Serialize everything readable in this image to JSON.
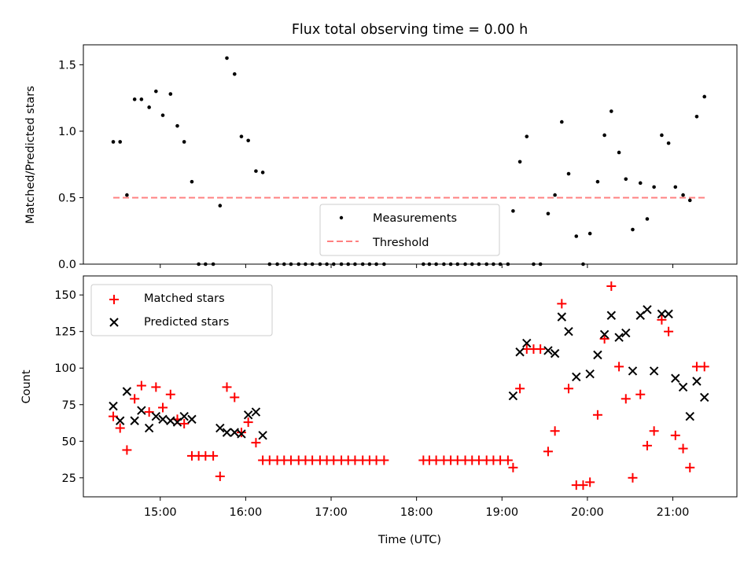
{
  "chart_data": [
    {
      "type": "scatter",
      "title": "Flux total observing time = 0.00 h",
      "xlabel": "",
      "ylabel": "Matched/Predicted stars",
      "xlim": [
        14.1,
        21.75
      ],
      "ylim": [
        0,
        1.65
      ],
      "x_ticks": [
        15,
        16,
        17,
        18,
        19,
        20,
        21
      ],
      "y_ticks": [
        0.0,
        0.5,
        1.0,
        1.5
      ],
      "y_tick_labels": [
        "0.0",
        "0.5",
        "1.0",
        "1.5"
      ],
      "legend_position": "lower-center",
      "legend": [
        "Measurements",
        "Threshold"
      ],
      "threshold": {
        "name": "Threshold",
        "value": 0.5,
        "x_range": [
          14.45,
          21.4
        ],
        "color": "#ff8080"
      },
      "series": [
        {
          "name": "Measurements",
          "marker": "dot",
          "color": "#000000",
          "x": [
            14.45,
            14.53,
            14.61,
            14.7,
            14.78,
            14.87,
            14.95,
            15.03,
            15.12,
            15.2,
            15.28,
            15.37,
            15.45,
            15.53,
            15.62,
            15.7,
            15.78,
            15.87,
            15.95,
            16.03,
            16.12,
            16.2,
            16.28,
            16.37,
            16.45,
            16.53,
            16.62,
            16.7,
            16.78,
            16.87,
            16.95,
            17.03,
            17.12,
            17.2,
            17.28,
            17.37,
            17.45,
            17.53,
            17.62,
            18.08,
            18.15,
            18.23,
            18.32,
            18.4,
            18.48,
            18.57,
            18.65,
            18.73,
            18.82,
            18.9,
            18.98,
            19.07,
            19.13,
            19.21,
            19.29,
            19.37,
            19.45,
            19.54,
            19.62,
            19.7,
            19.78,
            19.87,
            19.95,
            20.03,
            20.12,
            20.2,
            20.28,
            20.37,
            20.45,
            20.53,
            20.62,
            20.7,
            20.78,
            20.87,
            20.95,
            21.03,
            21.12,
            21.2,
            21.28,
            21.37
          ],
          "y": [
            0.92,
            0.92,
            0.52,
            1.24,
            1.24,
            1.18,
            1.3,
            1.12,
            1.28,
            1.04,
            0.92,
            0.62,
            0.0,
            0.0,
            0.0,
            0.44,
            1.55,
            1.43,
            0.96,
            0.93,
            0.7,
            0.69,
            0.0,
            0.0,
            0.0,
            0.0,
            0.0,
            0.0,
            0.0,
            0.0,
            0.0,
            0.0,
            0.0,
            0.0,
            0.0,
            0.0,
            0.0,
            0.0,
            0.0,
            0.0,
            0.0,
            0.0,
            0.0,
            0.0,
            0.0,
            0.0,
            0.0,
            0.0,
            0.0,
            0.0,
            0.0,
            0.0,
            0.4,
            0.77,
            0.96,
            0.0,
            0.0,
            0.38,
            0.52,
            1.07,
            0.68,
            0.21,
            0.0,
            0.23,
            0.62,
            0.97,
            1.15,
            0.84,
            0.64,
            0.26,
            0.61,
            0.34,
            0.58,
            0.97,
            0.91,
            0.58,
            0.52,
            0.48,
            1.11,
            1.26
          ]
        }
      ]
    },
    {
      "type": "scatter",
      "title": "",
      "xlabel": "Time (UTC)",
      "ylabel": "Count",
      "xlim": [
        14.1,
        21.75
      ],
      "ylim": [
        12,
        163
      ],
      "x_ticks": [
        15,
        16,
        17,
        18,
        19,
        20,
        21
      ],
      "x_tick_labels": [
        "15:00",
        "16:00",
        "17:00",
        "18:00",
        "19:00",
        "20:00",
        "21:00"
      ],
      "y_ticks": [
        25,
        50,
        75,
        100,
        125,
        150
      ],
      "y_tick_labels": [
        "25",
        "50",
        "75",
        "100",
        "125",
        "150"
      ],
      "legend_position": "upper-left",
      "legend": [
        "Matched stars",
        "Predicted stars"
      ],
      "series": [
        {
          "name": "Matched stars",
          "marker": "plus",
          "color": "#ff0000",
          "x": [
            14.45,
            14.53,
            14.61,
            14.7,
            14.78,
            14.87,
            14.95,
            15.03,
            15.12,
            15.2,
            15.28,
            15.37,
            15.45,
            15.53,
            15.62,
            15.7,
            15.78,
            15.87,
            15.95,
            16.03,
            16.12,
            16.2,
            16.28,
            16.37,
            16.45,
            16.53,
            16.62,
            16.7,
            16.78,
            16.87,
            16.95,
            17.03,
            17.12,
            17.2,
            17.28,
            17.37,
            17.45,
            17.53,
            17.62,
            18.08,
            18.15,
            18.23,
            18.32,
            18.4,
            18.48,
            18.57,
            18.65,
            18.73,
            18.82,
            18.9,
            18.98,
            19.07,
            19.13,
            19.21,
            19.29,
            19.37,
            19.45,
            19.54,
            19.62,
            19.7,
            19.78,
            19.87,
            19.95,
            20.03,
            20.12,
            20.2,
            20.28,
            20.37,
            20.45,
            20.53,
            20.62,
            20.7,
            20.78,
            20.87,
            20.95,
            21.03,
            21.12,
            21.2,
            21.28,
            21.37
          ],
          "y": [
            67,
            59,
            44,
            79,
            88,
            70,
            87,
            73,
            82,
            65,
            62,
            40,
            40,
            40,
            40,
            26,
            87,
            80,
            56,
            63,
            49,
            37,
            37,
            37,
            37,
            37,
            37,
            37,
            37,
            37,
            37,
            37,
            37,
            37,
            37,
            37,
            37,
            37,
            37,
            37,
            37,
            37,
            37,
            37,
            37,
            37,
            37,
            37,
            37,
            37,
            37,
            37,
            32,
            86,
            113,
            113,
            113,
            43,
            57,
            144,
            86,
            20,
            20,
            22,
            68,
            120,
            156,
            101,
            79,
            25,
            82,
            47,
            57,
            133,
            125,
            54,
            45,
            32,
            101,
            101
          ]
        },
        {
          "name": "Predicted stars",
          "marker": "x",
          "color": "#000000",
          "x": [
            14.45,
            14.53,
            14.61,
            14.7,
            14.78,
            14.87,
            14.95,
            15.03,
            15.12,
            15.2,
            15.28,
            15.37,
            15.7,
            15.78,
            15.87,
            15.95,
            16.03,
            16.12,
            16.2,
            19.13,
            19.21,
            19.29,
            19.54,
            19.62,
            19.7,
            19.78,
            19.87,
            20.03,
            20.12,
            20.2,
            20.28,
            20.37,
            20.45,
            20.53,
            20.62,
            20.7,
            20.78,
            20.87,
            20.95,
            21.03,
            21.12,
            21.2,
            21.28,
            21.37
          ],
          "y": [
            74,
            64,
            84,
            64,
            71,
            59,
            67,
            65,
            64,
            63,
            67,
            65,
            59,
            56,
            56,
            55,
            68,
            70,
            54,
            81,
            111,
            117,
            112,
            110,
            135,
            125,
            94,
            96,
            109,
            123,
            136,
            121,
            124,
            98,
            136,
            140,
            98,
            137,
            137,
            93,
            87,
            67,
            91,
            80
          ]
        }
      ]
    }
  ]
}
